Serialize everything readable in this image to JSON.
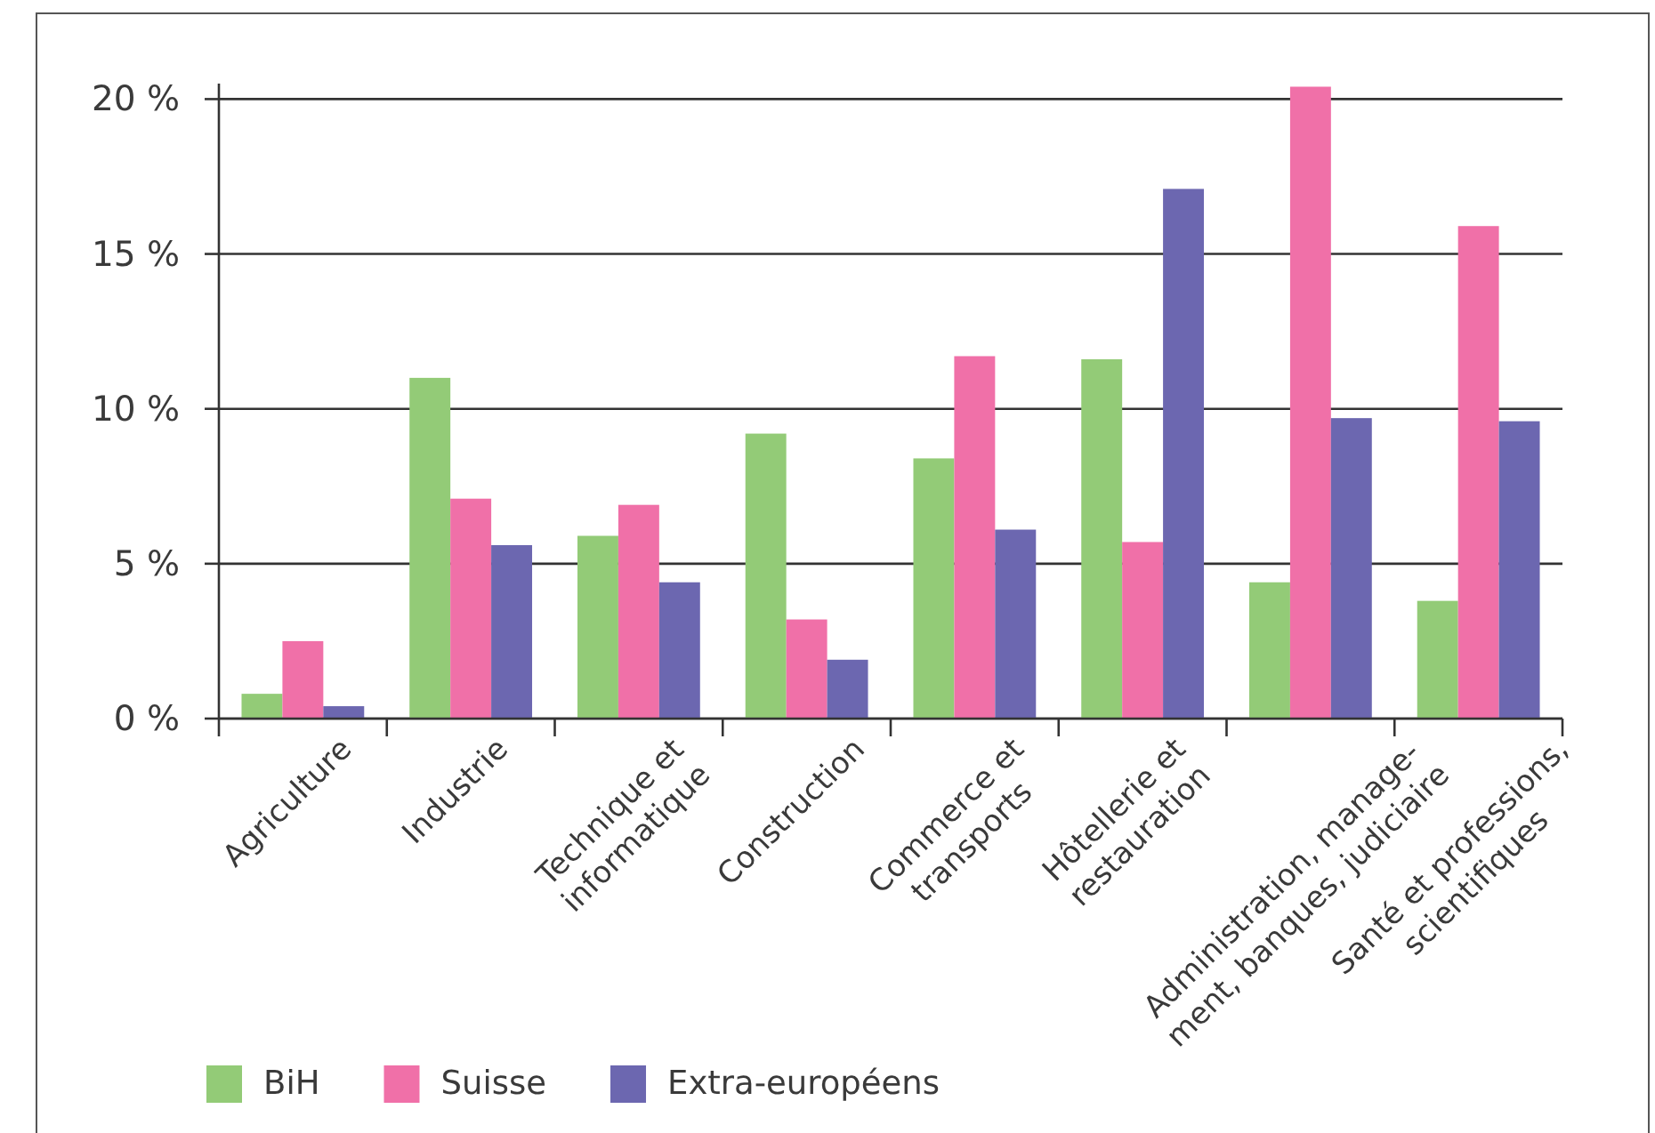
{
  "chart_data": {
    "type": "bar",
    "categories": [
      "Agriculture",
      "Industrie",
      "Technique et\ninformatique",
      "Construction",
      "Commerce et\ntransports",
      "Hôtellerie et\nrestauration",
      "Administration, manage-\nment, banques, judiciaire",
      "Santé et professions,\nscientifiques"
    ],
    "series": [
      {
        "name": "BiH",
        "color": "#93cb77",
        "values": [
          0.8,
          11.0,
          5.9,
          9.2,
          8.4,
          11.6,
          4.4,
          3.8
        ]
      },
      {
        "name": "Suisse",
        "color": "#f070a8",
        "values": [
          2.5,
          7.1,
          6.9,
          3.2,
          11.7,
          5.7,
          20.4,
          15.9
        ]
      },
      {
        "name": "Extra-européens",
        "color": "#6c67b0",
        "values": [
          0.4,
          5.6,
          4.4,
          1.9,
          6.1,
          17.1,
          9.7,
          9.6
        ]
      }
    ],
    "ylim": [
      0,
      20.5
    ],
    "yticks": [
      {
        "value": 0,
        "label": "0 %"
      },
      {
        "value": 5,
        "label": "5 %"
      },
      {
        "value": 10,
        "label": "10 %"
      },
      {
        "value": 15,
        "label": "15 %"
      },
      {
        "value": 20,
        "label": "20 %"
      }
    ],
    "grid": "y",
    "legend": "bottom"
  }
}
